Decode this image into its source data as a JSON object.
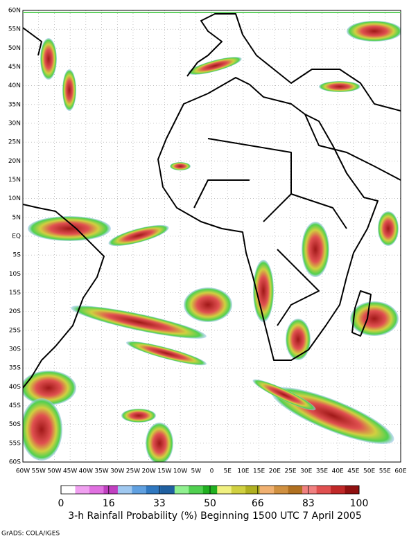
{
  "map": {
    "xlim": [
      -60,
      60
    ],
    "ylim": [
      -60,
      60
    ],
    "lat_ticks": [
      {
        "value": 60,
        "label": "60N"
      },
      {
        "value": 55,
        "label": "55N"
      },
      {
        "value": 50,
        "label": "50N"
      },
      {
        "value": 45,
        "label": "45N"
      },
      {
        "value": 40,
        "label": "40N"
      },
      {
        "value": 35,
        "label": "35N"
      },
      {
        "value": 30,
        "label": "30N"
      },
      {
        "value": 25,
        "label": "25N"
      },
      {
        "value": 20,
        "label": "20N"
      },
      {
        "value": 15,
        "label": "15N"
      },
      {
        "value": 10,
        "label": "10N"
      },
      {
        "value": 5,
        "label": "5N"
      },
      {
        "value": 0,
        "label": "EQ"
      },
      {
        "value": -5,
        "label": "5S"
      },
      {
        "value": -10,
        "label": "10S"
      },
      {
        "value": -15,
        "label": "15S"
      },
      {
        "value": -20,
        "label": "20S"
      },
      {
        "value": -25,
        "label": "25S"
      },
      {
        "value": -30,
        "label": "30S"
      },
      {
        "value": -35,
        "label": "35S"
      },
      {
        "value": -40,
        "label": "40S"
      },
      {
        "value": -45,
        "label": "45S"
      },
      {
        "value": -50,
        "label": "50S"
      },
      {
        "value": -55,
        "label": "55S"
      },
      {
        "value": -60,
        "label": "60S"
      }
    ],
    "lon_ticks": [
      {
        "value": -60,
        "label": "60W"
      },
      {
        "value": -55,
        "label": "55W"
      },
      {
        "value": -50,
        "label": "50W"
      },
      {
        "value": -45,
        "label": "45W"
      },
      {
        "value": -40,
        "label": "40W"
      },
      {
        "value": -35,
        "label": "35W"
      },
      {
        "value": -30,
        "label": "30W"
      },
      {
        "value": -25,
        "label": "25W"
      },
      {
        "value": -20,
        "label": "20W"
      },
      {
        "value": -15,
        "label": "15W"
      },
      {
        "value": -10,
        "label": "10W"
      },
      {
        "value": -5,
        "label": "5W"
      },
      0,
      {
        "value": 5,
        "label": "5E"
      },
      {
        "value": 10,
        "label": "10E"
      },
      {
        "value": 15,
        "label": "15E"
      },
      {
        "value": 20,
        "label": "20E"
      },
      {
        "value": 25,
        "label": "25E"
      },
      {
        "value": 30,
        "label": "30E"
      },
      {
        "value": 35,
        "label": "35E"
      },
      {
        "value": 40,
        "label": "40E"
      },
      {
        "value": 45,
        "label": "45E"
      },
      {
        "value": 50,
        "label": "50E"
      },
      {
        "value": 55,
        "label": "55E"
      },
      {
        "value": 60,
        "label": "60E"
      }
    ]
  },
  "colorbar": {
    "range": [
      0,
      100
    ],
    "ticks": [
      0,
      16,
      33,
      50,
      66,
      83,
      100
    ],
    "colors": [
      "#ffffff",
      "#f0a0f0",
      "#e070e0",
      "#c040c0",
      "#9fc8f0",
      "#60a0e0",
      "#3078c0",
      "#2060a0",
      "#90f090",
      "#50d050",
      "#20b020",
      "#f0f080",
      "#d0d040",
      "#b0b020",
      "#f0b070",
      "#d09040",
      "#b07020",
      "#f08080",
      "#e05050",
      "#c02828",
      "#901010"
    ]
  },
  "title": "3-h Rainfall Probability (%) Beginning 1500 UTC 7 April 2005",
  "credit": "GrADS: COLA/IGES"
}
